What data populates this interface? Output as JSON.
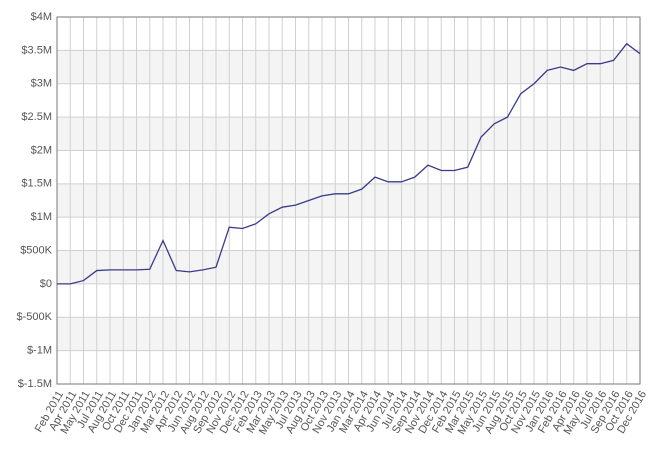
{
  "chart_data": {
    "type": "line",
    "categories": [
      "Feb 2011",
      "Apr 2011",
      "May 2011",
      "Jul 2011",
      "Aug 2011",
      "Oct 2011",
      "Dec 2011",
      "Jan 2012",
      "Mar 2012",
      "Apr 2012",
      "Jun 2012",
      "Aug 2012",
      "Sep 2012",
      "Nov 2012",
      "Dec 2012",
      "Feb 2013",
      "Mar 2013",
      "May 2013",
      "Jul 2013",
      "Aug 2013",
      "Oct 2013",
      "Nov 2013",
      "Jan 2014",
      "Mar 2014",
      "Apr 2014",
      "Jun 2014",
      "Jul 2014",
      "Sep 2014",
      "Nov 2014",
      "Dec 2014",
      "Feb 2015",
      "Mar 2015",
      "May 2015",
      "Jun 2015",
      "Aug 2015",
      "Oct 2015",
      "Nov 2015",
      "Jan 2016",
      "Feb 2016",
      "Apr 2016",
      "May 2016",
      "Jul 2016",
      "Sep 2016",
      "Oct 2016",
      "Dec 2016"
    ],
    "values": [
      0,
      0,
      50000,
      200000,
      210000,
      210000,
      210000,
      220000,
      650000,
      200000,
      180000,
      210000,
      250000,
      850000,
      830000,
      900000,
      1050000,
      1150000,
      1180000,
      1250000,
      1320000,
      1350000,
      1350000,
      1420000,
      1600000,
      1530000,
      1530000,
      1600000,
      1780000,
      1700000,
      1700000,
      1750000,
      2200000,
      2400000,
      2500000,
      2850000,
      3000000,
      3200000,
      3250000,
      3200000,
      3300000,
      3300000,
      3350000,
      3600000,
      3450000
    ],
    "color": "#3a3a8c",
    "ylim": [
      -1500000,
      4000000
    ],
    "yticks": [
      {
        "value": -1500000,
        "label": "$-1.5M"
      },
      {
        "value": -1000000,
        "label": "$-1M"
      },
      {
        "value": -500000,
        "label": "$-500K"
      },
      {
        "value": 0,
        "label": "$0"
      },
      {
        "value": 500000,
        "label": "$500K"
      },
      {
        "value": 1000000,
        "label": "$1M"
      },
      {
        "value": 1500000,
        "label": "$1.5M"
      },
      {
        "value": 2000000,
        "label": "$2M"
      },
      {
        "value": 2500000,
        "label": "$2.5M"
      },
      {
        "value": 3000000,
        "label": "$3M"
      },
      {
        "value": 3500000,
        "label": "$3.5M"
      },
      {
        "value": 4000000,
        "label": "$4M"
      }
    ],
    "grid": true
  }
}
